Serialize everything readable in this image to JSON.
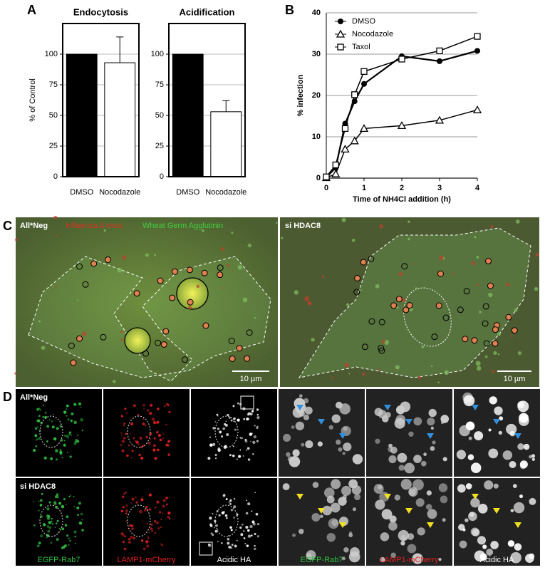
{
  "panels": {
    "a": "A",
    "b": "B",
    "c": "C",
    "d": "D"
  },
  "chart_data": [
    {
      "type": "bar",
      "title": "Endocytosis",
      "y_label": "% of Control",
      "categories": [
        "DMSO",
        "Nocodazole"
      ],
      "values": [
        100,
        93
      ],
      "errors": [
        null,
        21
      ],
      "colors": [
        "#000000",
        "#ffffff"
      ],
      "ylim": [
        0,
        125
      ],
      "yticks": [
        0,
        25,
        50,
        75,
        100
      ],
      "grid": true
    },
    {
      "type": "bar",
      "title": "Acidification",
      "categories": [
        "DMSO",
        "Nocodazole"
      ],
      "values": [
        100,
        53
      ],
      "errors": [
        null,
        9
      ],
      "colors": [
        "#000000",
        "#ffffff"
      ],
      "ylim": [
        0,
        125
      ],
      "yticks": [
        0,
        25,
        50,
        75,
        100
      ],
      "grid": true
    },
    {
      "type": "line",
      "x_label": "Time of NH4Cl addition (h)",
      "y_label": "% infection",
      "x": [
        0,
        0.25,
        0.5,
        0.75,
        1,
        2,
        3,
        4
      ],
      "series": [
        {
          "name": "DMSO",
          "marker": "circle",
          "color": "#000000",
          "values": [
            0.2,
            2.5,
            13.2,
            18.6,
            22.8,
            29.5,
            28.3,
            30.8
          ]
        },
        {
          "name": "Nocodazole",
          "marker": "triangle",
          "color": "#000000",
          "values": [
            0.1,
            1,
            7,
            9,
            12,
            12.7,
            14,
            16.5
          ]
        },
        {
          "name": "Taxol",
          "marker": "square",
          "color": "#000000",
          "values": [
            0.3,
            3.2,
            12,
            20.2,
            25.8,
            28.8,
            30.8,
            34.3
          ]
        }
      ],
      "xlim": [
        0,
        4
      ],
      "xticks": [
        0,
        1,
        2,
        3,
        4
      ],
      "ylim": [
        0,
        40
      ],
      "yticks": [
        0,
        10,
        20,
        30,
        40
      ],
      "grid": true,
      "legend": "upper left"
    }
  ],
  "panel_c": {
    "left": {
      "label": "All*Neg",
      "legend": [
        "Influenza A virus",
        "Wheat Germ Agglutinin"
      ],
      "scale_bar": "10 µm"
    },
    "right": {
      "label": "si HDAC8",
      "scale_bar": "10 µm"
    }
  },
  "panel_d": {
    "rows": [
      "All*Neg",
      "si HDAC8"
    ],
    "channels": [
      "EGFP-Rab7",
      "LAMP1-mCherry",
      "Acidic HA",
      "EGFP-Rab7",
      "LAMP1-mCherry",
      "Acidic HA"
    ]
  }
}
